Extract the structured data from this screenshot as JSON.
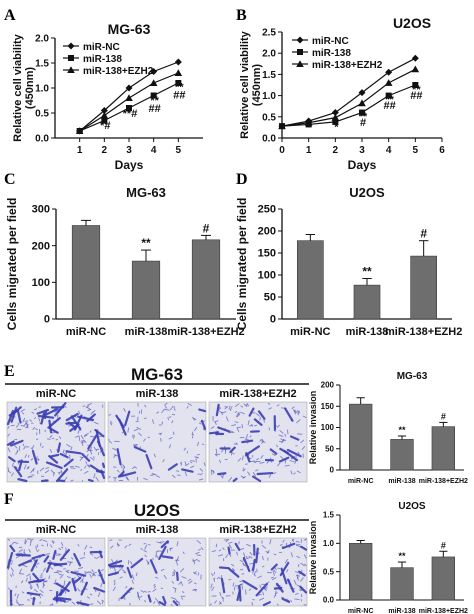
{
  "panels": {
    "A": "A",
    "B": "B",
    "C": "C",
    "D": "D",
    "E": "E",
    "F": "F"
  },
  "colors": {
    "ink": "#111111",
    "bar": "#6e6e6e",
    "stain": "#3b3fb4"
  },
  "chart_data": [
    {
      "id": "A",
      "type": "line",
      "title": "MG-63",
      "xlabel": "Days",
      "ylabel": "Relative cell viability (450nm)",
      "x": [
        1,
        2,
        3,
        4,
        5
      ],
      "xlim": [
        0,
        6
      ],
      "ylim": [
        0,
        2.0
      ],
      "yticks": [
        0.0,
        0.5,
        1.0,
        1.5,
        2.0
      ],
      "xticks": [
        1,
        2,
        3,
        4,
        5
      ],
      "series": [
        {
          "name": "miR-NC",
          "marker": "diamond",
          "values": [
            0.14,
            0.55,
            1.0,
            1.33,
            1.52
          ]
        },
        {
          "name": "miR-138",
          "marker": "square",
          "values": [
            0.14,
            0.35,
            0.6,
            0.85,
            1.1
          ]
        },
        {
          "name": "miR-138+EZH2",
          "marker": "triangle",
          "values": [
            0.14,
            0.45,
            0.8,
            1.1,
            1.3
          ]
        }
      ],
      "annotations": [
        {
          "x": 2,
          "y": 0.18,
          "text": "*#"
        },
        {
          "x": 3,
          "y": 0.42,
          "text": "**#"
        },
        {
          "x": 4,
          "y": 0.68,
          "text": "**"
        },
        {
          "x": 4,
          "y": 0.52,
          "text": "##"
        },
        {
          "x": 5,
          "y": 0.95,
          "text": "**"
        },
        {
          "x": 5,
          "y": 0.79,
          "text": "##"
        }
      ]
    },
    {
      "id": "B",
      "type": "line",
      "title": "U2OS",
      "xlabel": "Days",
      "ylabel": "Relative cell viability (450nm)",
      "x": [
        0,
        1,
        2,
        3,
        4,
        5
      ],
      "xlim": [
        0,
        6
      ],
      "ylim": [
        0,
        2.5
      ],
      "yticks": [
        0.0,
        0.5,
        1.0,
        1.5,
        2.0,
        2.5
      ],
      "xticks": [
        0,
        1,
        2,
        3,
        4,
        5,
        6
      ],
      "series": [
        {
          "name": "miR-NC",
          "marker": "diamond",
          "values": [
            0.28,
            0.4,
            0.6,
            1.07,
            1.55,
            1.88
          ]
        },
        {
          "name": "miR-138",
          "marker": "square",
          "values": [
            0.28,
            0.32,
            0.38,
            0.6,
            1.0,
            1.25
          ]
        },
        {
          "name": "miR-138+EZH2",
          "marker": "triangle",
          "values": [
            0.28,
            0.36,
            0.48,
            0.82,
            1.3,
            1.62
          ]
        }
      ],
      "annotations": [
        {
          "x": 2,
          "y": 0.18,
          "text": "*"
        },
        {
          "x": 3,
          "y": 0.42,
          "text": "**"
        },
        {
          "x": 3,
          "y": 0.28,
          "text": "#"
        },
        {
          "x": 4,
          "y": 0.82,
          "text": "**"
        },
        {
          "x": 4,
          "y": 0.68,
          "text": "##"
        },
        {
          "x": 5,
          "y": 1.06,
          "text": "**"
        },
        {
          "x": 5,
          "y": 0.92,
          "text": "##"
        }
      ]
    },
    {
      "id": "C",
      "type": "bar",
      "title": "MG-63",
      "ylabel": "Cells migrated per field",
      "categories": [
        "miR-NC",
        "miR-138",
        "miR-138+EZH2"
      ],
      "values": [
        255,
        158,
        216
      ],
      "errors": [
        14,
        30,
        12
      ],
      "ylim": [
        0,
        300
      ],
      "yticks": [
        0,
        100,
        200,
        300
      ],
      "annotations": [
        "",
        "**",
        "#"
      ]
    },
    {
      "id": "D",
      "type": "bar",
      "title": "U2OS",
      "ylabel": "Cells migrated per field",
      "categories": [
        "miR-NC",
        "miR-138",
        "miR-138+EZH2"
      ],
      "values": [
        178,
        77,
        143
      ],
      "errors": [
        14,
        15,
        35
      ],
      "ylim": [
        0,
        250
      ],
      "yticks": [
        0,
        50,
        100,
        150,
        200,
        250
      ],
      "annotations": [
        "",
        "**",
        "#"
      ]
    },
    {
      "id": "E",
      "type": "bar",
      "title": "MG-63",
      "ylabel": "Relative invasion",
      "categories": [
        "miR-NC",
        "miR-138",
        "miR-138+EZH2"
      ],
      "values": [
        155,
        72,
        102
      ],
      "errors": [
        15,
        8,
        10
      ],
      "ylim": [
        0,
        200
      ],
      "yticks": [
        0,
        50,
        100,
        150,
        200
      ],
      "annotations": [
        "",
        "**",
        "#"
      ]
    },
    {
      "id": "F",
      "type": "bar",
      "title": "U2OS",
      "ylabel": "Relative invasion",
      "categories": [
        "miR-NC",
        "miR-138",
        "miR-138+EZH2"
      ],
      "values": [
        1.0,
        0.57,
        0.76
      ],
      "errors": [
        0.05,
        0.1,
        0.1
      ],
      "ylim": [
        0,
        1.5
      ],
      "yticks": [
        0.0,
        0.5,
        1.0,
        1.5
      ],
      "annotations": [
        "",
        "**",
        "#"
      ]
    }
  ],
  "micrographs": {
    "E": {
      "title": "MG-63",
      "labels": [
        "miR-NC",
        "miR-138",
        "miR-138+EZH2"
      ],
      "density": [
        1.0,
        0.55,
        0.75
      ]
    },
    "F": {
      "title": "U2OS",
      "labels": [
        "miR-NC",
        "miR-138",
        "miR-138+EZH2"
      ],
      "density": [
        1.0,
        0.6,
        0.8
      ]
    }
  }
}
